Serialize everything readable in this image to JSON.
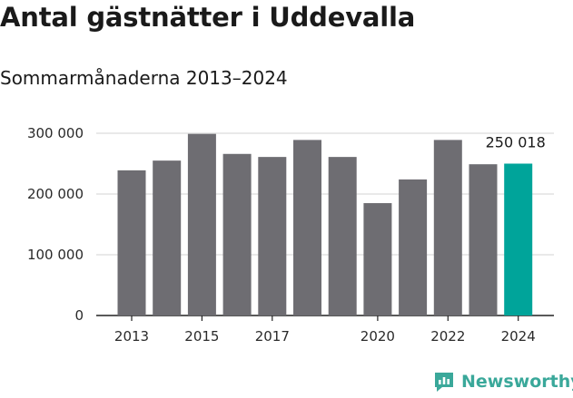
{
  "title": "Antal gästnätter i Uddevalla",
  "subtitle": "Sommarmånaderna 2013–2024",
  "brand": {
    "name": "Newsworthy",
    "color": "#3aa89a"
  },
  "colors": {
    "bar": "#6e6d72",
    "highlight": "#00a49a",
    "grid": "#dcdcdc",
    "axis": "#222222"
  },
  "chart_data": {
    "type": "bar",
    "categories": [
      "2013",
      "2014",
      "2015",
      "2016",
      "2017",
      "2018",
      "2019",
      "2020",
      "2021",
      "2022",
      "2023",
      "2024"
    ],
    "values": [
      239000,
      255000,
      299000,
      266000,
      261000,
      289000,
      261000,
      185000,
      224000,
      289000,
      249000,
      250018
    ],
    "highlight_index": 11,
    "data_labels": [
      {
        "index": 11,
        "text": "250 018"
      }
    ],
    "x_tick_labels": [
      {
        "category": "2013",
        "text": "2013"
      },
      {
        "category": "2015",
        "text": "2015"
      },
      {
        "category": "2017",
        "text": "2017"
      },
      {
        "category": "2020",
        "text": "2020"
      },
      {
        "category": "2022",
        "text": "2022"
      },
      {
        "category": "2024",
        "text": "2024"
      }
    ],
    "y_ticks": [
      {
        "value": 0,
        "text": "0"
      },
      {
        "value": 100000,
        "text": "100 000"
      },
      {
        "value": 200000,
        "text": "200 000"
      },
      {
        "value": 300000,
        "text": "300 000"
      }
    ],
    "ylim": [
      0,
      300000
    ],
    "grid": true,
    "xlabel": "",
    "ylabel": ""
  }
}
